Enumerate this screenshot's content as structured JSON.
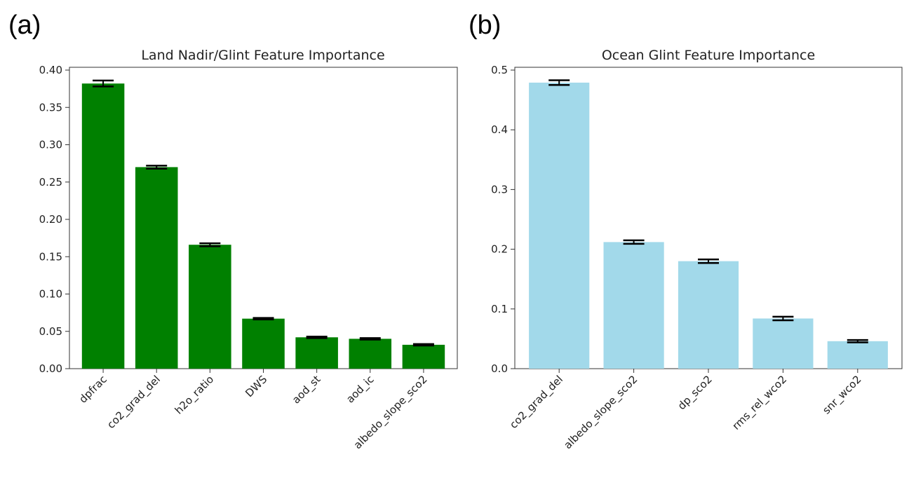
{
  "panels": {
    "a": {
      "label": "(a)"
    },
    "b": {
      "label": "(b)"
    }
  },
  "chart_data": [
    {
      "type": "bar",
      "title": "Land Nadir/Glint Feature Importance",
      "categories": [
        "dpfrac",
        "co2_grad_del",
        "h2o_ratio",
        "DWS",
        "aod_st",
        "aod_ic",
        "albedo_slope_sco2"
      ],
      "values": [
        0.382,
        0.27,
        0.166,
        0.067,
        0.042,
        0.04,
        0.032
      ],
      "errors": [
        0.004,
        0.002,
        0.002,
        0.001,
        0.001,
        0.001,
        0.001
      ],
      "ylim": [
        0,
        0.4
      ],
      "yticks": [
        "0.00",
        "0.05",
        "0.10",
        "0.15",
        "0.20",
        "0.25",
        "0.30",
        "0.35",
        "0.40"
      ],
      "color": "#008000",
      "xlabel": "",
      "ylabel": ""
    },
    {
      "type": "bar",
      "title": "Ocean Glint Feature Importance",
      "categories": [
        "co2_grad_del",
        "albedo_slope_sco2",
        "dp_sco2",
        "rms_rel_wco2",
        "snr_wco2"
      ],
      "values": [
        0.479,
        0.212,
        0.18,
        0.084,
        0.046
      ],
      "errors": [
        0.004,
        0.003,
        0.003,
        0.003,
        0.002
      ],
      "ylim": [
        0,
        0.5
      ],
      "yticks": [
        "0.0",
        "0.1",
        "0.2",
        "0.3",
        "0.4",
        "0.5"
      ],
      "color": "#a2d9ea",
      "xlabel": "",
      "ylabel": ""
    }
  ]
}
